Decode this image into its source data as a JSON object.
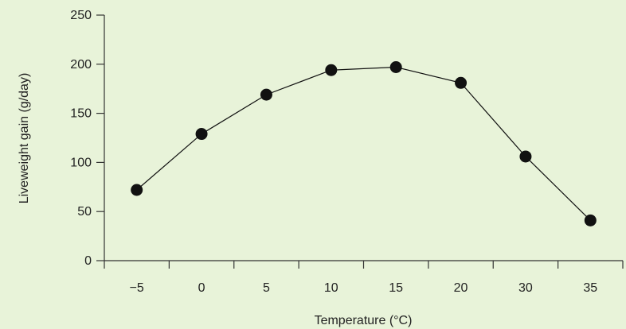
{
  "page": {
    "background_color": "#e8f3d9"
  },
  "chart_data": {
    "type": "line",
    "title": "",
    "xlabel": "Temperature (°C)",
    "ylabel": "Liveweight gain (g/day)",
    "categories": [
      "−5",
      "0",
      "5",
      "10",
      "15",
      "20",
      "30",
      "35"
    ],
    "series": [
      {
        "values": [
          72,
          129,
          169,
          194,
          197,
          181,
          106,
          41
        ]
      }
    ],
    "ylim": [
      0,
      250
    ],
    "yticks": [
      0,
      50,
      100,
      150,
      200,
      250
    ],
    "grid": false,
    "legend": "none",
    "colors": {
      "line": "#111111",
      "marker": "#111111",
      "axis": "#333333",
      "text": "#222222"
    }
  }
}
